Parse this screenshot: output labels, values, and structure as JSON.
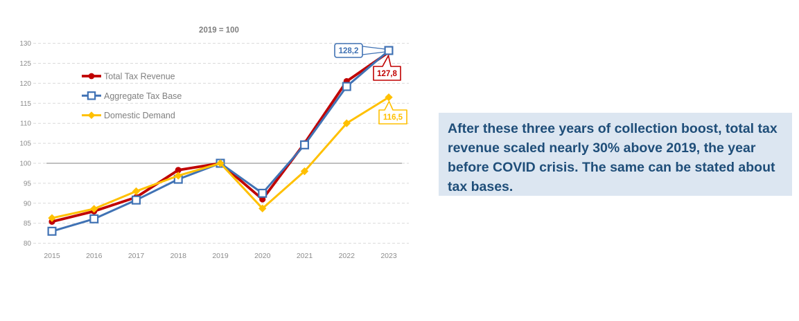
{
  "chart_data": {
    "type": "line",
    "title": "2019 = 100",
    "categories": [
      "2015",
      "2016",
      "2017",
      "2018",
      "2019",
      "2020",
      "2021",
      "2022",
      "2023"
    ],
    "series": [
      {
        "name": "Total Tax Revenue",
        "color": "#C00000",
        "marker": "circle",
        "values": [
          85.4,
          88.0,
          91.5,
          98.3,
          100.0,
          91.0,
          105.0,
          120.5,
          127.8
        ]
      },
      {
        "name": "Aggregate Tax Base",
        "color": "#4072B4",
        "marker": "open-square",
        "values": [
          83.0,
          86.1,
          90.8,
          96.0,
          100.0,
          92.5,
          104.6,
          119.2,
          128.2
        ]
      },
      {
        "name": "Domestic Demand",
        "color": "#FFC000",
        "marker": "diamond",
        "values": [
          86.3,
          88.6,
          93.0,
          96.9,
          100.0,
          88.7,
          98.0,
          110.0,
          116.5
        ]
      }
    ],
    "ylim": [
      80,
      130
    ],
    "ytick_step": 5,
    "reference_line": 100,
    "grid": "horizontal-dashed",
    "legend_position": "inside-top-left",
    "data_labels": [
      {
        "series": "Aggregate Tax Base",
        "category": "2023",
        "label": "128,2"
      },
      {
        "series": "Total Tax Revenue",
        "category": "2023",
        "label": "127,8"
      },
      {
        "series": "Domestic Demand",
        "category": "2023",
        "label": "116,5"
      }
    ]
  },
  "annotation": {
    "text": "After these three years of collection boost, total tax revenue scaled nearly 30% above 2019, the year before COVID crisis. The same can be stated about tax bases.",
    "bg_color": "#DCE6F1",
    "text_color": "#1F4E79"
  },
  "colors": {
    "grid_line": "#D9D9D9",
    "reference_line": "#9A9A9A",
    "axis_text": "#8C8C8C",
    "title_text": "#7F7F7F",
    "legend_text": "#808080",
    "background": "#FFFFFF"
  }
}
